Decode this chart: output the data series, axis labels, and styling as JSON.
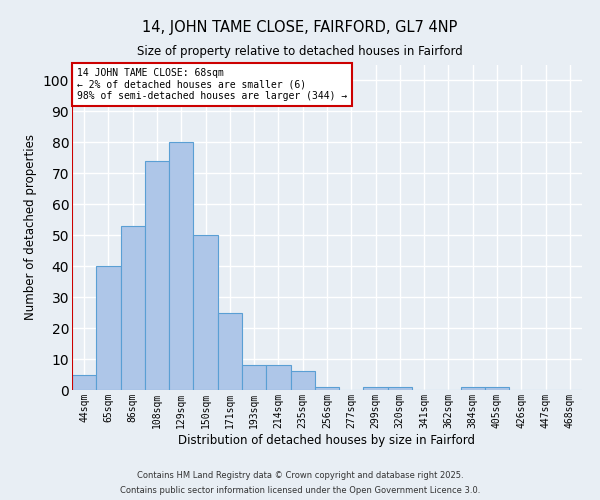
{
  "title1": "14, JOHN TAME CLOSE, FAIRFORD, GL7 4NP",
  "title2": "Size of property relative to detached houses in Fairford",
  "xlabel": "Distribution of detached houses by size in Fairford",
  "ylabel": "Number of detached properties",
  "bar_labels": [
    "44sqm",
    "65sqm",
    "86sqm",
    "108sqm",
    "129sqm",
    "150sqm",
    "171sqm",
    "193sqm",
    "214sqm",
    "235sqm",
    "256sqm",
    "277sqm",
    "299sqm",
    "320sqm",
    "341sqm",
    "362sqm",
    "384sqm",
    "405sqm",
    "426sqm",
    "447sqm",
    "468sqm"
  ],
  "bar_values": [
    5,
    40,
    53,
    74,
    80,
    50,
    25,
    8,
    8,
    6,
    1,
    0,
    1,
    1,
    0,
    0,
    1,
    1,
    0,
    0,
    0
  ],
  "bar_color": "#aec6e8",
  "bar_edge_color": "#5a9fd4",
  "background_color": "#e8eef4",
  "grid_color": "#ffffff",
  "property_line_color": "#cc0000",
  "annotation_text": "14 JOHN TAME CLOSE: 68sqm\n← 2% of detached houses are smaller (6)\n98% of semi-detached houses are larger (344) →",
  "annotation_box_color": "#ffffff",
  "annotation_box_edge": "#cc0000",
  "ylim": [
    0,
    105
  ],
  "yticks": [
    0,
    10,
    20,
    30,
    40,
    50,
    60,
    70,
    80,
    90,
    100
  ],
  "footer1": "Contains HM Land Registry data © Crown copyright and database right 2025.",
  "footer2": "Contains public sector information licensed under the Open Government Licence 3.0."
}
